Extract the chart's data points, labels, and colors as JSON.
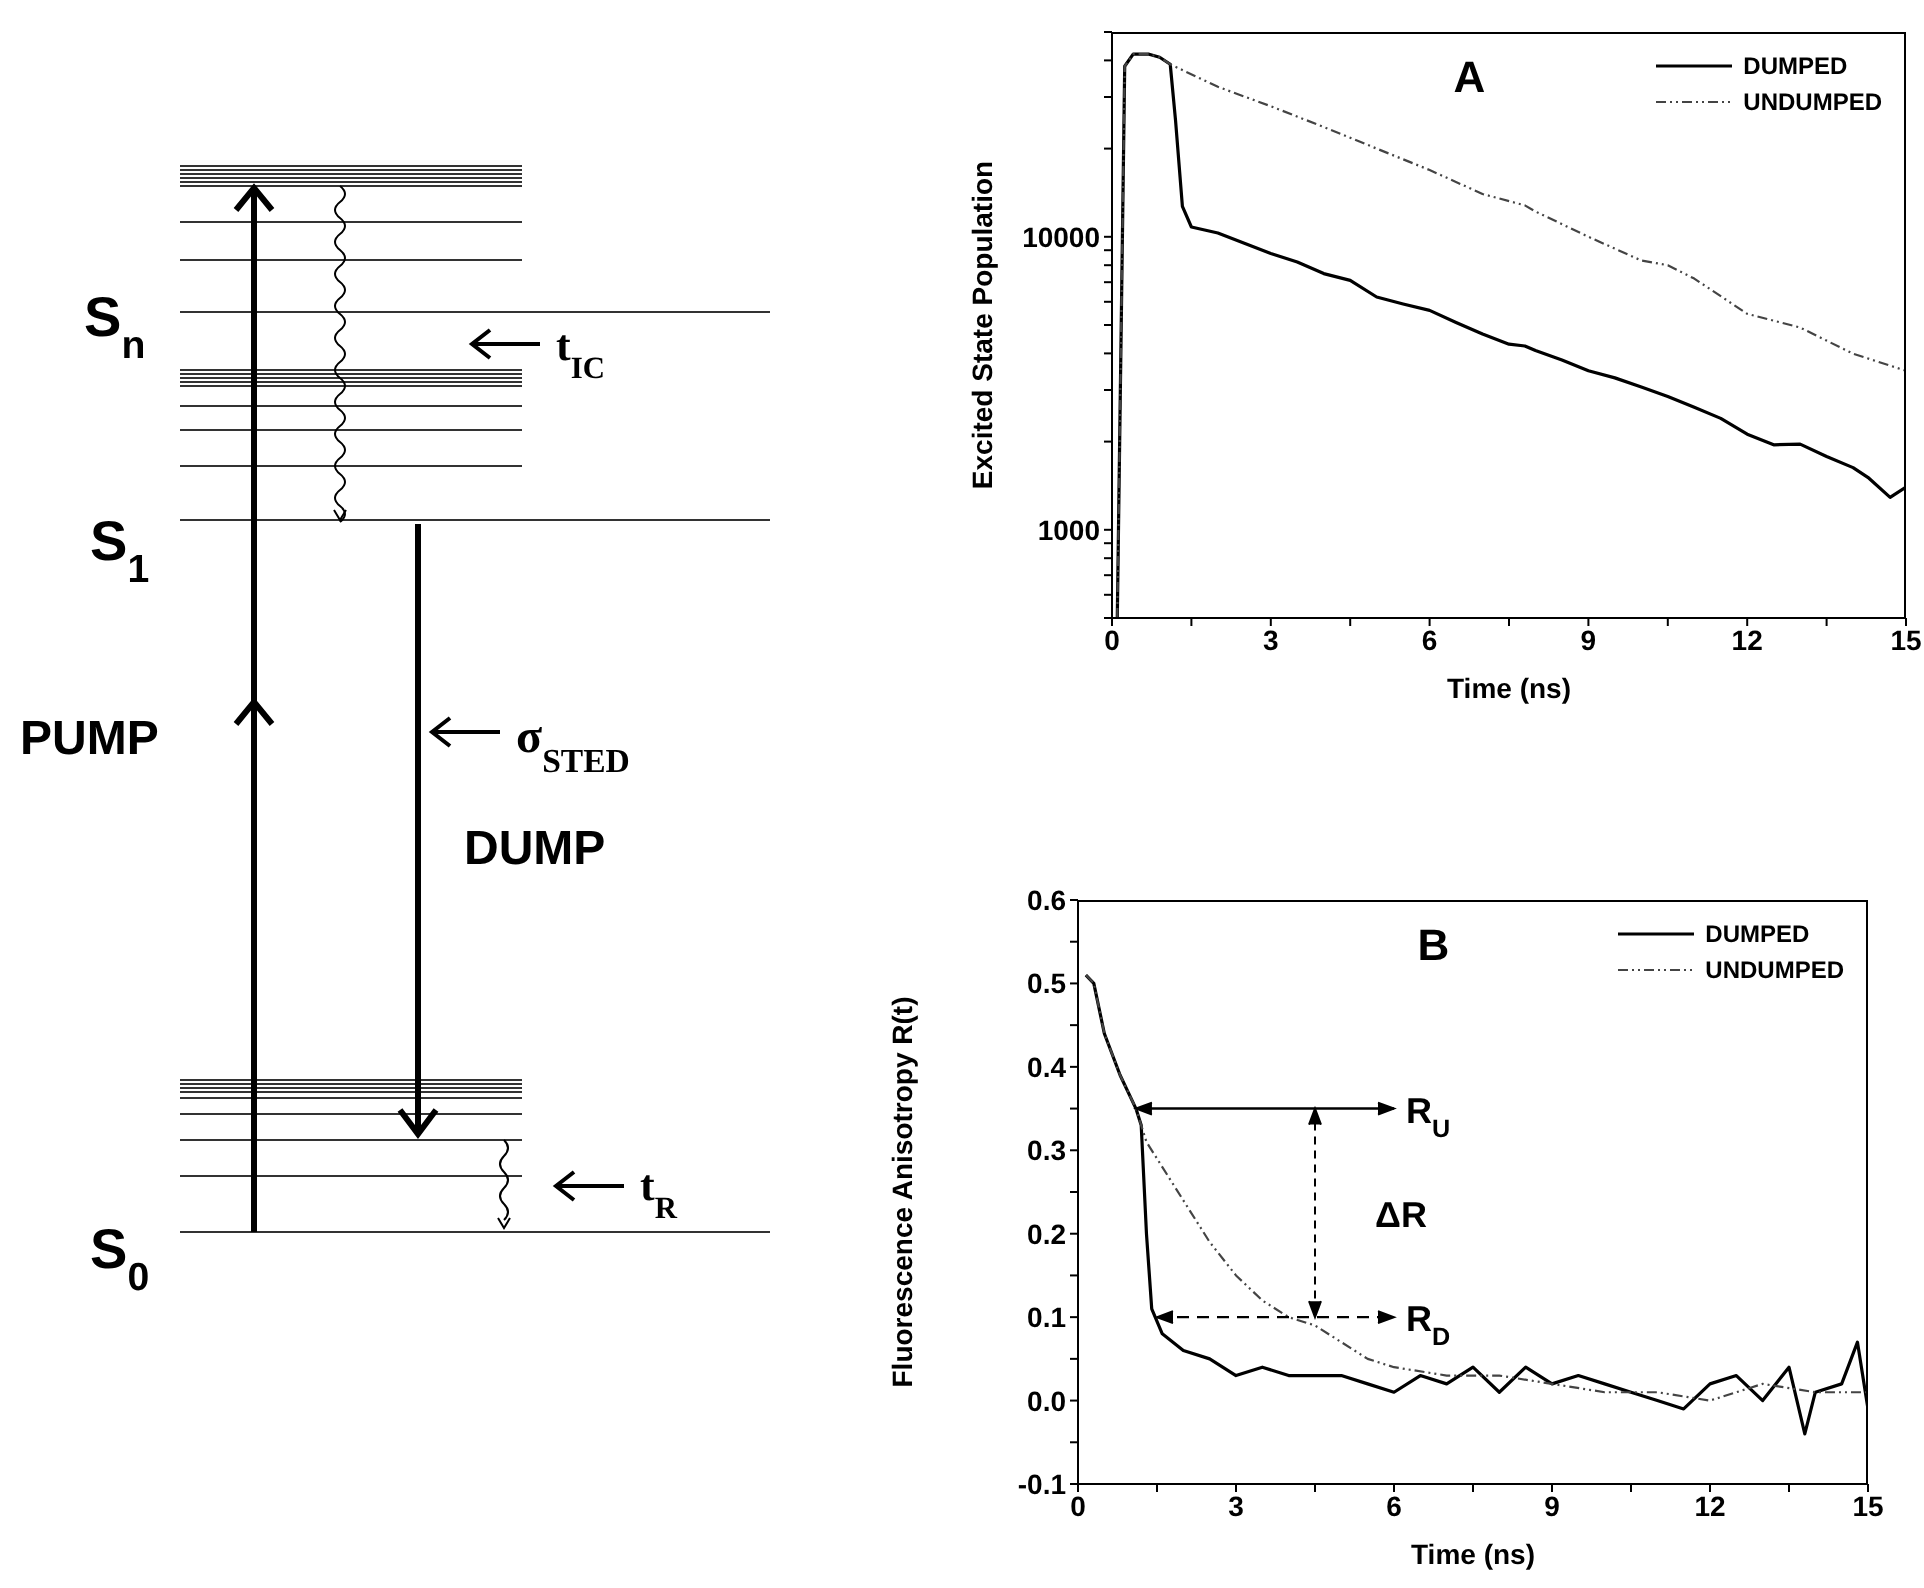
{
  "chart_data": [
    {
      "type": "other",
      "annotations": [
        "S$_{n}$",
        "t$_{IC}$",
        "S$_{1}$",
        "PUMP",
        "σ$_{STED}$",
        "DUMP",
        "S$_{0}$",
        "t$_{R}$"
      ]
    },
    {
      "type": "line",
      "title": "A",
      "xlabel": "Time (ns)",
      "ylabel": "Excited State Population",
      "log": "y",
      "legend": "top right",
      "xlim": [
        0,
        15
      ],
      "xticks": [
        0,
        {
          "value": 1.5,
          "label": null
        },
        3,
        {
          "value": 4.5,
          "label": null
        },
        6,
        {
          "value": 7.5,
          "label": null
        },
        9,
        {
          "value": 10.5,
          "label": null
        },
        12,
        {
          "value": 13.5,
          "label": null
        },
        15
      ],
      "ylim": [
        500,
        50000
      ],
      "yticks": [
        {
          "value": 500,
          "label": null
        },
        {
          "value": 600,
          "label": null
        },
        {
          "value": 700,
          "label": null
        },
        {
          "value": 800,
          "label": null
        },
        {
          "value": 900,
          "label": null
        },
        1000,
        {
          "value": 2000,
          "label": null
        },
        {
          "value": 3000,
          "label": null
        },
        {
          "value": 4000,
          "label": null
        },
        {
          "value": 5000,
          "label": null
        },
        {
          "value": 6000,
          "label": null
        },
        {
          "value": 7000,
          "label": null
        },
        {
          "value": 8000,
          "label": null
        },
        {
          "value": 9000,
          "label": null
        },
        10000,
        {
          "value": 20000,
          "label": null
        },
        {
          "value": 30000,
          "label": null
        },
        {
          "value": 40000,
          "label": null
        },
        {
          "value": 50000,
          "label": null
        }
      ],
      "series": [
        {
          "name": "DUMPED",
          "color": "#000000",
          "line_style": "solid",
          "x": [
            0.1,
            0.24,
            0.4,
            0.7,
            0.9,
            1.1,
            1.2,
            1.33,
            1.5,
            2,
            2.5,
            3,
            3.5,
            4,
            4.5,
            5,
            5.5,
            6,
            6.5,
            7,
            7.5,
            7.8,
            8,
            8.5,
            9,
            9.5,
            10,
            10.5,
            11,
            11.5,
            12,
            12.5,
            13,
            13.5,
            14,
            14.3,
            14.7,
            15
          ],
          "values": [
            500,
            38200,
            42000,
            42000,
            41000,
            38800,
            25000,
            12700,
            10800,
            10300,
            9500,
            8770,
            8200,
            7490,
            7100,
            6230,
            5900,
            5610,
            5100,
            4660,
            4300,
            4240,
            4090,
            3800,
            3490,
            3300,
            3070,
            2850,
            2620,
            2400,
            2120,
            1950,
            1960,
            1780,
            1630,
            1500,
            1290,
            1400
          ]
        },
        {
          "name": "UNDUMPED",
          "color": "#444444",
          "line_style": "dashed",
          "x": [
            0.1,
            0.24,
            0.4,
            0.7,
            0.9,
            1.1,
            2,
            3,
            4,
            5,
            6,
            7,
            7.8,
            8,
            9,
            10,
            10.5,
            11,
            12,
            13,
            14,
            15
          ],
          "values": [
            500,
            38200,
            42000,
            42000,
            41000,
            38800,
            32500,
            27900,
            23700,
            20000,
            16900,
            14000,
            12800,
            12200,
            10000,
            8300,
            8000,
            7200,
            5460,
            4900,
            3990,
            3490
          ]
        }
      ]
    },
    {
      "type": "line",
      "title": "B",
      "xlabel": "Time (ns)",
      "ylabel": "Fluorescence Anisotropy R(t)",
      "legend": "top right",
      "xlim": [
        0,
        15
      ],
      "xticks": [
        0,
        {
          "value": 1.5,
          "label": null
        },
        3,
        {
          "value": 4.5,
          "label": null
        },
        6,
        {
          "value": 7.5,
          "label": null
        },
        9,
        {
          "value": 10.5,
          "label": null
        },
        12,
        {
          "value": 13.5,
          "label": null
        },
        15
      ],
      "ylim": [
        -0.1,
        0.6
      ],
      "yticks": [
        -0.1,
        {
          "value": -0.05,
          "label": null
        },
        {
          "value": 0,
          "label": "0.0"
        },
        {
          "value": 0.05,
          "label": null
        },
        0.1,
        {
          "value": 0.15,
          "label": null
        },
        0.2,
        {
          "value": 0.25,
          "label": null
        },
        0.3,
        {
          "value": 0.35,
          "label": null
        },
        0.4,
        {
          "value": 0.45,
          "label": null
        },
        0.5,
        {
          "value": 0.55,
          "label": null
        },
        0.6
      ],
      "annotations": [
        {
          "text": "R$_{U}$",
          "x": 1.1,
          "y": 0.35
        },
        "ΔR",
        {
          "text": "R$_{D}$",
          "x": 1.5,
          "y": 0.1
        }
      ],
      "series": [
        {
          "name": "DUMPED",
          "color": "#000000",
          "line_style": "solid",
          "x": [
            0.15,
            0.3,
            0.5,
            0.8,
            1.1,
            1.2,
            1.3,
            1.4,
            1.6,
            2,
            2.5,
            3,
            3.5,
            4,
            4.5,
            5,
            5.5,
            6,
            6.5,
            7,
            7.5,
            8,
            8.5,
            9,
            9.5,
            10,
            10.5,
            11,
            11.5,
            12,
            12.5,
            13,
            13.5,
            13.8,
            14,
            14.5,
            14.8,
            15
          ],
          "values": [
            0.51,
            0.5,
            0.44,
            0.39,
            0.35,
            0.33,
            0.2,
            0.11,
            0.08,
            0.06,
            0.05,
            0.03,
            0.04,
            0.03,
            0.03,
            0.03,
            0.02,
            0.01,
            0.03,
            0.02,
            0.04,
            0.01,
            0.04,
            0.02,
            0.03,
            0.02,
            0.01,
            0.0,
            -0.01,
            0.02,
            0.03,
            0.0,
            0.04,
            -0.04,
            0.01,
            0.02,
            0.07,
            -0.01
          ]
        },
        {
          "name": "UNDUMPED",
          "color": "#444444",
          "line_style": "dashed",
          "x": [
            0.15,
            0.3,
            0.5,
            0.8,
            1.1,
            1.3,
            1.5,
            2,
            2.5,
            3,
            3.5,
            4,
            4.5,
            5,
            5.5,
            6,
            7,
            8,
            9,
            10,
            11,
            12,
            13,
            14,
            15
          ],
          "values": [
            0.51,
            0.5,
            0.44,
            0.39,
            0.35,
            0.31,
            0.29,
            0.24,
            0.19,
            0.15,
            0.12,
            0.1,
            0.09,
            0.07,
            0.05,
            0.04,
            0.03,
            0.03,
            0.02,
            0.01,
            0.01,
            0.0,
            0.02,
            0.01,
            0.01
          ]
        }
      ]
    }
  ]
}
